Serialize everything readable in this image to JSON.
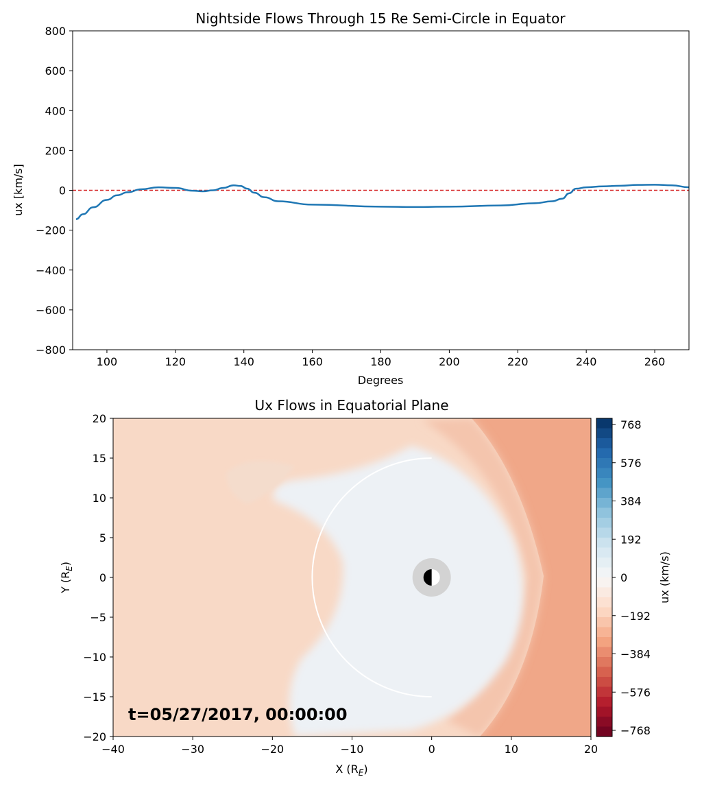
{
  "chart_data": [
    {
      "type": "line",
      "title": "Nightside Flows Through 15 Re Semi-Circle in Equator",
      "xlabel": "Degrees",
      "ylabel": "ux [km/s]",
      "xlim": [
        90,
        270
      ],
      "ylim": [
        -800,
        800
      ],
      "xticks": [
        100,
        120,
        140,
        160,
        180,
        200,
        220,
        240,
        260
      ],
      "yticks": [
        -800,
        -600,
        -400,
        -200,
        0,
        200,
        400,
        600,
        800
      ],
      "grid": false,
      "reference_line": {
        "y": 0,
        "style": "dashed",
        "color": "#d62728"
      },
      "series": [
        {
          "color": "#1f77b4",
          "x": [
            91,
            93,
            96,
            100,
            103,
            106,
            110,
            115,
            120,
            125,
            128,
            131,
            134,
            137,
            139,
            141,
            143,
            146,
            150,
            160,
            180,
            190,
            200,
            215,
            225,
            230,
            233,
            235,
            237,
            240,
            245,
            250,
            255,
            260,
            265,
            270
          ],
          "y": [
            -145,
            -120,
            -85,
            -48,
            -25,
            -10,
            5,
            15,
            12,
            -2,
            -5,
            0,
            12,
            25,
            22,
            8,
            -12,
            -35,
            -55,
            -72,
            -82,
            -84,
            -82,
            -76,
            -65,
            -55,
            -42,
            -15,
            8,
            15,
            20,
            23,
            27,
            28,
            25,
            15
          ]
        }
      ]
    },
    {
      "type": "heatmap",
      "title": "Ux Flows in Equatorial Plane",
      "xlabel": "X (R",
      "xlabel_sub": "E",
      "ylabel": "Y (R",
      "ylabel_sub": "E",
      "xlim": [
        -40,
        20
      ],
      "ylim": [
        -20,
        20
      ],
      "xticks": [
        -40,
        -30,
        -20,
        -10,
        0,
        10,
        20
      ],
      "yticks": [
        20,
        15,
        10,
        5,
        0,
        -5,
        -10,
        -15,
        -20
      ],
      "colorbar": {
        "label": "ux (km/s)",
        "range": [
          -768,
          768
        ],
        "ticks": [
          768,
          576,
          384,
          192,
          0,
          -192,
          -384,
          -576,
          -768
        ],
        "colormap": "RdBu"
      },
      "overlay_circle_radius": 15,
      "annotation": "t=05/27/2017, 00:00:00",
      "colors": {
        "background": "#f8d9c6",
        "inner_region": "#edf1f5",
        "solar_wind": "#f0a788",
        "earth_ring": "#d3d3d3"
      }
    }
  ]
}
